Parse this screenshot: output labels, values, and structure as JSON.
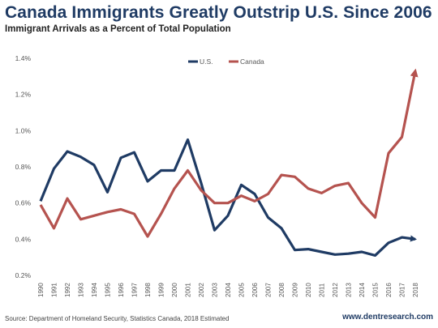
{
  "header": {
    "title": "Canada Immigrants Greatly Outstrip U.S. Since 2006",
    "subtitle": "Immigrant Arrivals as a Percent of Total Population"
  },
  "footer": {
    "source": "Source: Department of Homeland Security, Statistics Canada, 2018 Estimated",
    "website": "www.dentresearch.com"
  },
  "chart_data": {
    "type": "line",
    "title": "Canada Immigrants Greatly Outstrip U.S. Since 2006",
    "subtitle": "Immigrant Arrivals as a Percent of Total Population",
    "x": [
      "1990",
      "1991",
      "1992",
      "1993",
      "1994",
      "1995",
      "1996",
      "1997",
      "1998",
      "1999",
      "2000",
      "2001",
      "2002",
      "2003",
      "2004",
      "2005",
      "2006",
      "2007",
      "2008",
      "2009",
      "2010",
      "2011",
      "2012",
      "2013",
      "2014",
      "2015",
      "2016",
      "2017",
      "2018"
    ],
    "y_ticks": [
      "0.2%",
      "0.4%",
      "0.6%",
      "0.8%",
      "1.0%",
      "1.2%",
      "1.4%"
    ],
    "ylim": [
      0.2,
      1.4
    ],
    "grid": false,
    "legend_position": "top-center",
    "series": [
      {
        "name": "U.S.",
        "color": "#1f3b64",
        "values": [
          0.61,
          0.79,
          0.885,
          0.855,
          0.81,
          0.66,
          0.85,
          0.88,
          0.72,
          0.78,
          0.78,
          0.95,
          0.71,
          0.45,
          0.53,
          0.7,
          0.65,
          0.52,
          0.46,
          0.34,
          0.345,
          0.33,
          0.315,
          0.32,
          0.33,
          0.31,
          0.38,
          0.41,
          0.4
        ]
      },
      {
        "name": "Canada",
        "color": "#b5534f",
        "values": [
          0.59,
          0.46,
          0.625,
          0.51,
          0.53,
          0.55,
          0.565,
          0.54,
          0.415,
          0.54,
          0.68,
          0.78,
          0.67,
          0.6,
          0.6,
          0.64,
          0.61,
          0.65,
          0.755,
          0.745,
          0.68,
          0.655,
          0.695,
          0.71,
          0.6,
          0.52,
          0.875,
          0.965,
          1.33
        ]
      }
    ]
  }
}
